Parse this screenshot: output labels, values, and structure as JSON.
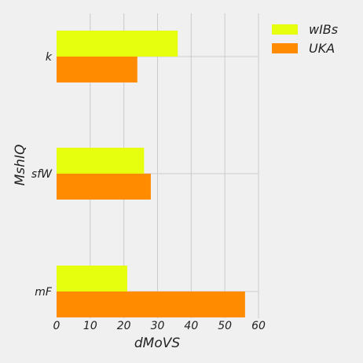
{
  "chart_data": {
    "type": "bar",
    "orientation": "horizontal",
    "categories": [
      "k",
      "sfW",
      "mF"
    ],
    "series": [
      {
        "name": "wIBs",
        "values": [
          36,
          26,
          21
        ],
        "color": "#e6ff0f"
      },
      {
        "name": "UKA",
        "values": [
          24,
          28,
          56
        ],
        "color": "#ff8c00"
      }
    ],
    "xlabel": "dMoVS",
    "ylabel": "MshIQ",
    "xlim": [
      0,
      60
    ],
    "xticks": [
      0,
      10,
      20,
      30,
      40,
      50,
      60
    ],
    "grid": true,
    "legend_position": "top-right"
  }
}
